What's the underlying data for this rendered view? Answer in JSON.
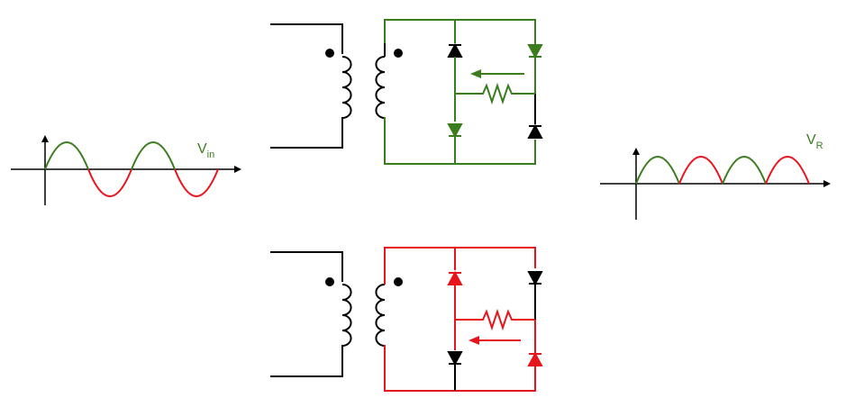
{
  "colors": {
    "positive": "#3a7d1e",
    "negative": "#e8141c",
    "neutral": "#000000"
  },
  "input_plot": {
    "label_main": "V",
    "label_sub": "in"
  },
  "output_plot": {
    "label_main": "V",
    "label_sub": "R"
  },
  "circuits": [
    {
      "half_cycle": "positive"
    },
    {
      "half_cycle": "negative"
    }
  ]
}
